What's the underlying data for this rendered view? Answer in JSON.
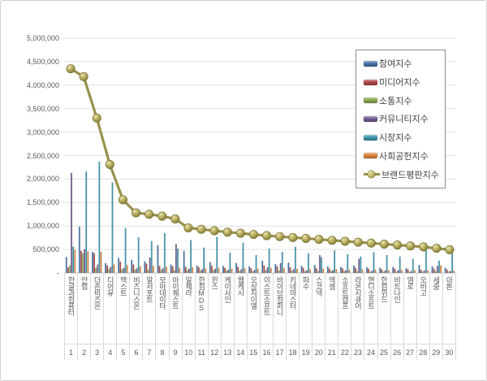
{
  "legend": {
    "entries": [
      {
        "label": "참여지수",
        "color": "#4572A7",
        "type": "bar"
      },
      {
        "label": "미디어지수",
        "color": "#AA4643",
        "type": "bar"
      },
      {
        "label": "소통지수",
        "color": "#89A54E",
        "type": "bar"
      },
      {
        "label": "커뮤니티지수",
        "color": "#71588F",
        "type": "bar"
      },
      {
        "label": "시장지수",
        "color": "#3D96AE",
        "type": "bar"
      },
      {
        "label": "사회공헌지수",
        "color": "#DB843D",
        "type": "bar"
      },
      {
        "label": "브랜드평판지수",
        "color": "#98914B",
        "type": "line"
      }
    ]
  },
  "chart_data": {
    "type": "bar",
    "title": "",
    "xlabel": "",
    "ylabel": "",
    "ylim": [
      0,
      5000000
    ],
    "grid": true,
    "legend_position": "right-top",
    "categories": [
      "한글과컴퓨터",
      "안랩",
      "더존비즈온",
      "디어유",
      "맥스트",
      "비즈니스온",
      "알서포트",
      "모아데이타",
      "아이퀘스트",
      "알체라",
      "한컴MDS",
      "윈스",
      "케이사인",
      "웹케시",
      "오상자이엘",
      "이스트소프트",
      "바이브컴퍼니",
      "키네마스터",
      "파수",
      "스코넥",
      "엑셈",
      "소프트캠프",
      "라온시큐어",
      "핸디소프트",
      "한컴위드",
      "비트나인",
      "엠로",
      "오비고",
      "세중",
      "아톤"
    ],
    "category_numbers": [
      "1",
      "2",
      "3",
      "4",
      "5",
      "6",
      "7",
      "8",
      "9",
      "10",
      "11",
      "12",
      "13",
      "14",
      "15",
      "16",
      "17",
      "18",
      "19",
      "20",
      "21",
      "22",
      "23",
      "24",
      "25",
      "26",
      "27",
      "28",
      "29",
      "30"
    ],
    "y_ticks": [
      {
        "value": 0,
        "label": "-"
      },
      {
        "value": 500000,
        "label": "500,000"
      },
      {
        "value": 1000000,
        "label": "1,000,000"
      },
      {
        "value": 1500000,
        "label": "1,500,000"
      },
      {
        "value": 2000000,
        "label": "2,000,000"
      },
      {
        "value": 2500000,
        "label": "2,500,000"
      },
      {
        "value": 3000000,
        "label": "3,000,000"
      },
      {
        "value": 3500000,
        "label": "3,500,000"
      },
      {
        "value": 4000000,
        "label": "4,000,000"
      },
      {
        "value": 4500000,
        "label": "4,500,000"
      },
      {
        "value": 5000000,
        "label": "5,000,000"
      }
    ],
    "series": [
      {
        "name": "참여지수",
        "color": "#4572A7",
        "values": [
          340000,
          990000,
          450000,
          210000,
          320000,
          280000,
          250000,
          590000,
          180000,
          470000,
          160000,
          230000,
          150000,
          210000,
          140000,
          260000,
          190000,
          220000,
          150000,
          170000,
          140000,
          130000,
          160000,
          120000,
          110000,
          130000,
          100000,
          170000,
          140000,
          110000
        ]
      },
      {
        "name": "미디어지수",
        "color": "#AA4643",
        "values": [
          120000,
          470000,
          420000,
          160000,
          240000,
          180000,
          200000,
          150000,
          140000,
          130000,
          120000,
          150000,
          110000,
          130000,
          100000,
          160000,
          140000,
          120000,
          110000,
          100000,
          90000,
          100000,
          110000,
          90000,
          80000,
          90000,
          80000,
          70000,
          90000,
          70000
        ]
      },
      {
        "name": "소통지수",
        "color": "#89A54E",
        "values": [
          160000,
          420000,
          110000,
          90000,
          80000,
          70000,
          70000,
          70000,
          60000,
          60000,
          50000,
          60000,
          50000,
          50000,
          40000,
          60000,
          50000,
          50000,
          40000,
          40000,
          40000,
          40000,
          40000,
          30000,
          30000,
          30000,
          30000,
          30000,
          40000,
          30000
        ]
      },
      {
        "name": "커뮤니티지수",
        "color": "#71588F",
        "values": [
          2130000,
          510000,
          180000,
          130000,
          110000,
          100000,
          330000,
          100000,
          620000,
          90000,
          80000,
          90000,
          70000,
          80000,
          60000,
          120000,
          210000,
          80000,
          60000,
          380000,
          60000,
          60000,
          300000,
          50000,
          50000,
          60000,
          40000,
          50000,
          150000,
          40000
        ]
      },
      {
        "name": "시장지수",
        "color": "#3D96AE",
        "values": [
          560000,
          2160000,
          2370000,
          1930000,
          950000,
          760000,
          680000,
          850000,
          520000,
          700000,
          540000,
          770000,
          430000,
          640000,
          380000,
          520000,
          450000,
          560000,
          420000,
          330000,
          480000,
          400000,
          350000,
          440000,
          380000,
          350000,
          300000,
          490000,
          260000,
          420000
        ]
      },
      {
        "name": "사회공헌지수",
        "color": "#DB843D",
        "values": [
          490000,
          460000,
          450000,
          180000,
          170000,
          140000,
          150000,
          130000,
          110000,
          120000,
          100000,
          110000,
          90000,
          100000,
          90000,
          110000,
          100000,
          90000,
          80000,
          90000,
          80000,
          70000,
          80000,
          70000,
          60000,
          70000,
          60000,
          60000,
          160000,
          50000
        ]
      }
    ],
    "line_series": {
      "name": "브랜드평판지수",
      "color": "#98914B",
      "marker_fill": "#B3AA59",
      "values": [
        4350000,
        4180000,
        3300000,
        2310000,
        1560000,
        1280000,
        1250000,
        1210000,
        1150000,
        960000,
        930000,
        900000,
        870000,
        845000,
        820000,
        795000,
        775000,
        755000,
        735000,
        715000,
        695000,
        675000,
        655000,
        635000,
        615000,
        595000,
        575000,
        555000,
        525000,
        495000
      ]
    }
  },
  "colors": {
    "gridline": "#E0E0E0",
    "baseline": "#BFBFBF",
    "axis_text": "#595959",
    "legend_border": "#8C8C8C",
    "marker_stroke": "#6E682F"
  }
}
